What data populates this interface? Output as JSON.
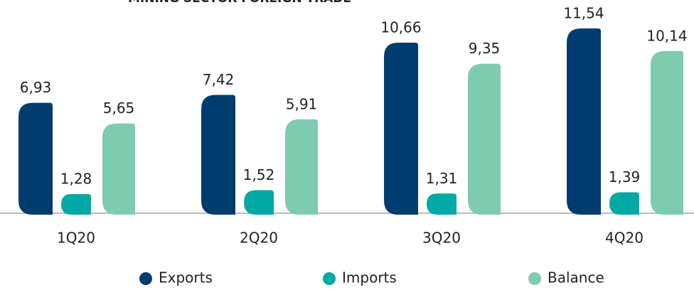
{
  "chart_data": {
    "type": "bar",
    "title": "MINING SECTOR FOREIGN TRADE",
    "categories": [
      "1Q20",
      "2Q20",
      "3Q20",
      "4Q20"
    ],
    "series": [
      {
        "name": "Exports",
        "color": "#003d6e",
        "values": [
          6.93,
          7.42,
          10.66,
          11.54
        ],
        "value_labels": [
          "6,93",
          "7,42",
          "10,66",
          "11,54"
        ]
      },
      {
        "name": "Imports",
        "color": "#00a9a5",
        "values": [
          1.28,
          1.52,
          1.31,
          1.39
        ],
        "value_labels": [
          "1,28",
          "1,52",
          "1,31",
          "1,39"
        ]
      },
      {
        "name": "Balance",
        "color": "#7ecbb0",
        "values": [
          5.65,
          5.91,
          9.35,
          10.14
        ],
        "value_labels": [
          "5,65",
          "5,91",
          "9,35",
          "10,14"
        ]
      }
    ]
  }
}
